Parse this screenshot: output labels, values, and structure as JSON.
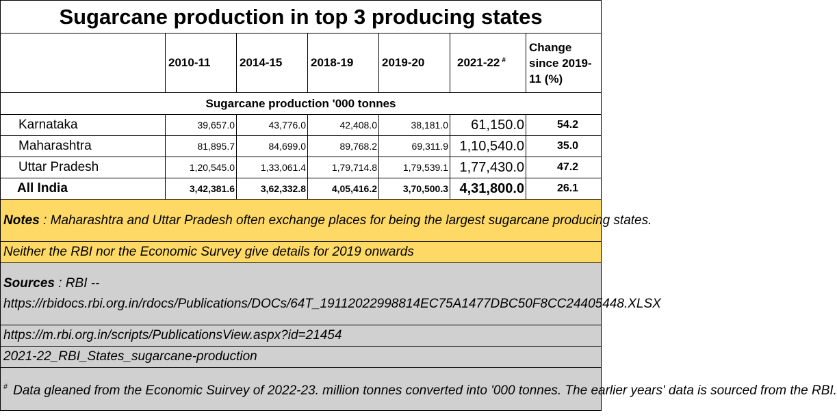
{
  "title": "Sugarcane production in top 3 producing states",
  "headers": {
    "col1": "2010-11",
    "col2": "2014-15",
    "col3": "2018-19",
    "col4": "2019-20",
    "col5": "2021-22",
    "col5_mark": "#",
    "col6_line1": "Change",
    "col6_line2": "since 2019-",
    "col6_line3": "11 (%)"
  },
  "section_label": "Sugarcane production '000 tonnes",
  "rows": [
    {
      "state": "Karnataka",
      "v1": "39,657.0",
      "v2": "43,776.0",
      "v3": "42,408.0",
      "v4": "38,181.0",
      "v5": "61,150.0",
      "change": "54.2"
    },
    {
      "state": "Maharashtra",
      "v1": "81,895.7",
      "v2": "84,699.0",
      "v3": "89,768.2",
      "v4": "69,311.9",
      "v5": "1,10,540.0",
      "change": "35.0"
    },
    {
      "state": "Uttar Pradesh",
      "v1": "1,20,545.0",
      "v2": "1,33,061.4",
      "v3": "1,79,714.8",
      "v4": "1,79,539.1",
      "v5": "1,77,430.0",
      "change": "47.2"
    },
    {
      "state": "All India",
      "v1": "3,42,381.6",
      "v2": "3,62,332.8",
      "v3": "4,05,416.2",
      "v4": "3,70,500.3",
      "v5": "4,31,800.0",
      "change": "26.1"
    }
  ],
  "notes": {
    "label": "Notes",
    "text": " : Maharashtra and Uttar Pradesh often exchange places for being the largest sugarcane producing states.",
    "line2": "Neither the RBI nor the Economic Survey give details for 2019 onwards"
  },
  "sources": {
    "label": "Sources",
    "text": " : RBI --",
    "url1": "https://rbidocs.rbi.org.in/rdocs/Publications/DOCs/64T_19112022998814EC75A1477DBC50F8CC24405448.XLSX",
    "url2": "https://m.rbi.org.in/scripts/PublicationsView.aspx?id=21454",
    "file": "2021-22_RBI_States_sugarcane-production"
  },
  "footnote": {
    "mark": "#",
    "text": "Data gleaned from the Economic Suirvey of 2022-23. million tonnes converted into '000 tonnes.  The earlier years' data is sourced from the RBI."
  },
  "colors": {
    "notes_bg": "#ffd966",
    "sources_bg": "#d0d0d0",
    "border": "#000000"
  }
}
